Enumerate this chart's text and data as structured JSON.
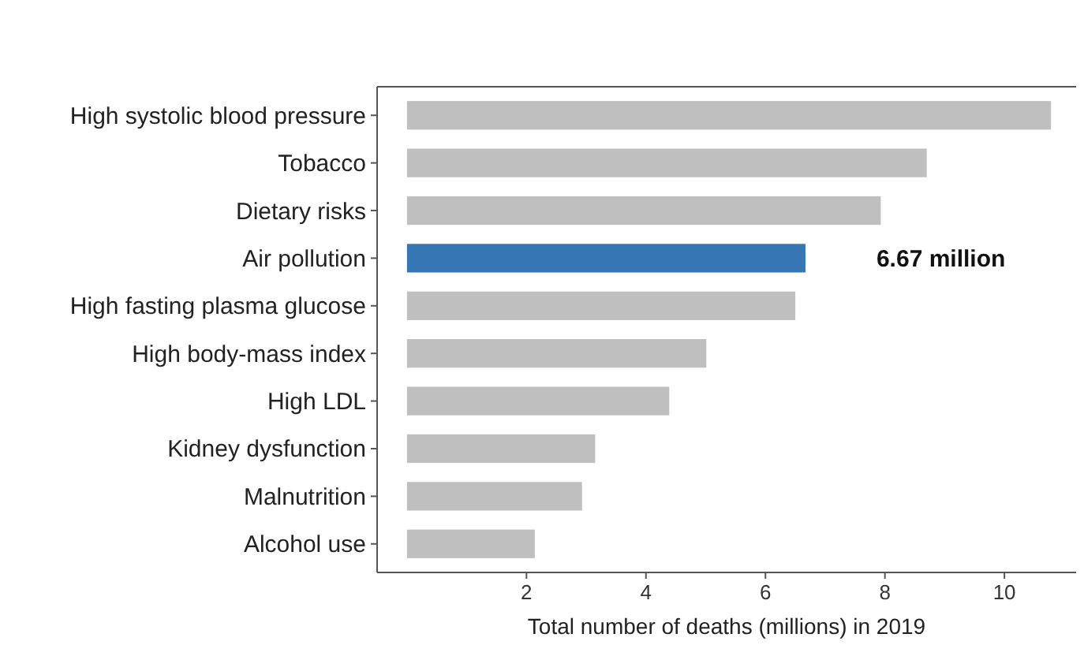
{
  "chart_data": {
    "type": "bar",
    "orientation": "horizontal",
    "xlabel": "Total number of deaths (millions) in 2019",
    "categories": [
      "High systolic blood pressure",
      "Tobacco",
      "Dietary risks",
      "Air pollution",
      "High fasting plasma glucose",
      "High body-mass index",
      "High LDL",
      "Kidney dysfunction",
      "Malnutrition",
      "Alcohol use"
    ],
    "values": [
      10.78,
      8.7,
      7.93,
      6.67,
      6.5,
      5.01,
      4.39,
      3.15,
      2.93,
      2.14
    ],
    "colors": [
      "#bfbfbf",
      "#bfbfbf",
      "#bfbfbf",
      "#3577b5",
      "#bfbfbf",
      "#bfbfbf",
      "#bfbfbf",
      "#bfbfbf",
      "#bfbfbf",
      "#bfbfbf"
    ],
    "value_labels": [
      null,
      null,
      null,
      "6.67 million",
      null,
      null,
      null,
      null,
      null,
      null
    ],
    "xlim": [
      -0.5,
      11.2
    ],
    "xticks": [
      2,
      4,
      6,
      8,
      10
    ]
  }
}
